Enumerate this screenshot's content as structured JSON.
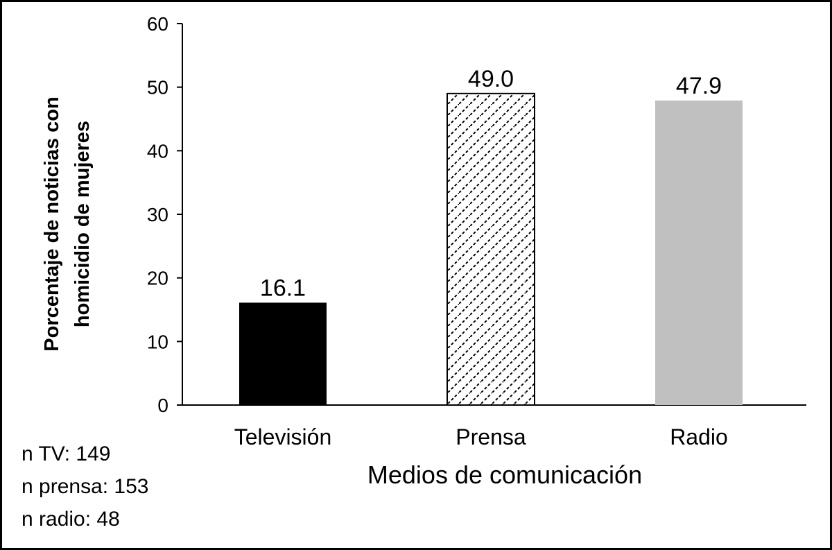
{
  "chart_data": {
    "type": "bar",
    "categories": [
      "Televisión",
      "Prensa",
      "Radio"
    ],
    "values": [
      16.1,
      49.0,
      47.9
    ],
    "value_labels": [
      "16.1",
      "49.0",
      "47.9"
    ],
    "bar_styles": [
      "solid-black",
      "diagonal-hatch",
      "solid-gray"
    ],
    "bar_colors": [
      "#000000",
      "#ffffff",
      "#c0c0c0"
    ],
    "xlabel": "Medios de comunicación",
    "ylabel_lines": [
      "Porcentaje de noticias con",
      "homicidio de mujeres"
    ],
    "ylim": [
      0,
      60
    ],
    "yticks": [
      0,
      10,
      20,
      30,
      40,
      50,
      60
    ],
    "grid": false,
    "legend": "none"
  },
  "notes": [
    "n TV: 149",
    "n prensa: 153",
    "n radio: 48"
  ]
}
